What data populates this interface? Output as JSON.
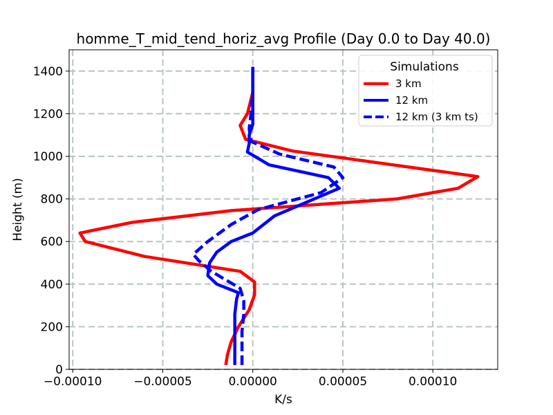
{
  "chart_data": {
    "type": "line",
    "title": "homme_T_mid_tend_horiz_avg Profile (Day 0.0 to Day 40.0)",
    "xlabel": "K/s",
    "ylabel": "Height (m)",
    "xlim": [
      -0.000102,
      0.000136
    ],
    "ylim": [
      0,
      1500
    ],
    "grid": true,
    "x_ticks": [
      -0.0001,
      -5e-05,
      0.0,
      5e-05,
      0.0001
    ],
    "x_tick_labels": [
      "−0.00010",
      "−0.00005",
      "0.00000",
      "0.00005",
      "0.00010"
    ],
    "y_ticks": [
      0,
      200,
      400,
      600,
      800,
      1000,
      1200,
      1400
    ],
    "y_tick_labels": [
      "0",
      "200",
      "400",
      "600",
      "800",
      "1000",
      "1200",
      "1400"
    ],
    "legend": {
      "title": "Simulations",
      "location": "upper right"
    },
    "series": [
      {
        "name": "3 km",
        "color": "#ff0000",
        "style": "solid",
        "x": [
          -1.5e-05,
          -1.4e-05,
          -1.2e-05,
          -8e-06,
          -2e-06,
          1e-06,
          1e-06,
          -7e-06,
          -6e-05,
          -9.3e-05,
          -9.6e-05,
          -6.7e-05,
          -1.2e-05,
          8e-05,
          0.000114,
          0.000125,
          2.2e-05,
          -4e-06,
          -7e-06,
          -3e-06,
          0.0,
          0.0
        ],
        "y": [
          20,
          70,
          130,
          200,
          280,
          350,
          410,
          460,
          530,
          600,
          640,
          690,
          745,
          800,
          850,
          905,
          1025,
          1080,
          1145,
          1200,
          1300,
          1420
        ]
      },
      {
        "name": "12 km",
        "color": "#0000ff",
        "style": "solid",
        "x": [
          -1e-05,
          -1e-05,
          -1e-05,
          -1e-05,
          -9e-06,
          -8e-06,
          -2e-05,
          -2.5e-05,
          -2.4e-05,
          -2e-05,
          -1.2e-05,
          0.0,
          1.2e-05,
          4.8e-05,
          4.2e-05,
          9e-06,
          -3e-06,
          -2e-06,
          -2e-06,
          0.0,
          0.0,
          0.0,
          0.0
        ],
        "y": [
          20,
          100,
          180,
          260,
          330,
          360,
          400,
          440,
          500,
          550,
          600,
          640,
          720,
          850,
          900,
          960,
          1020,
          1060,
          1100,
          1150,
          1200,
          1300,
          1420
        ]
      },
      {
        "name": "12 km (3 km ts)",
        "color": "#0000ff",
        "style": "dashed",
        "x": [
          -6e-06,
          -6e-06,
          -6e-06,
          -5e-06,
          -5e-06,
          -7e-06,
          -1.5e-05,
          -2.3e-05,
          -3e-05,
          -3.3e-05,
          -2.5e-05,
          -1.2e-05,
          3e-06,
          3.8e-05,
          5e-05,
          4.5e-05,
          1.5e-05,
          -1e-06,
          -2e-06,
          -1e-06,
          0.0,
          0.0
        ],
        "y": [
          20,
          100,
          180,
          260,
          320,
          380,
          420,
          460,
          510,
          540,
          600,
          680,
          750,
          830,
          900,
          950,
          1010,
          1070,
          1130,
          1200,
          1300,
          1420
        ]
      }
    ]
  }
}
